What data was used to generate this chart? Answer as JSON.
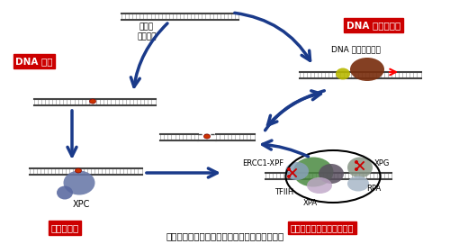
{
  "title": "図１　ヌクレオチド除去修復の反応機構モデル",
  "label_dna_damage": "DNA 損傷",
  "label_uv": "紫外線\n化学物質",
  "label_resynthesis": "DNA 鎖の再合成",
  "label_polymerase": "DNA ポリメラーゼ",
  "label_recognition": "損傷の認識",
  "label_incision": "損傷の両側での一本鎖切断",
  "label_xpc": "XPC",
  "label_xpg": "XPG",
  "label_ercc1": "ERCC1-XPF",
  "label_tfiih": "TFIIH",
  "label_xpa": "XPA",
  "label_rpa": "RPA",
  "bg_color": "#ffffff",
  "arrow_color": "#1a3a8a",
  "red_label_bg": "#cc0000",
  "red_label_fg": "#ffffff",
  "dna_color": "#444444",
  "damage_color": "#cc3300"
}
